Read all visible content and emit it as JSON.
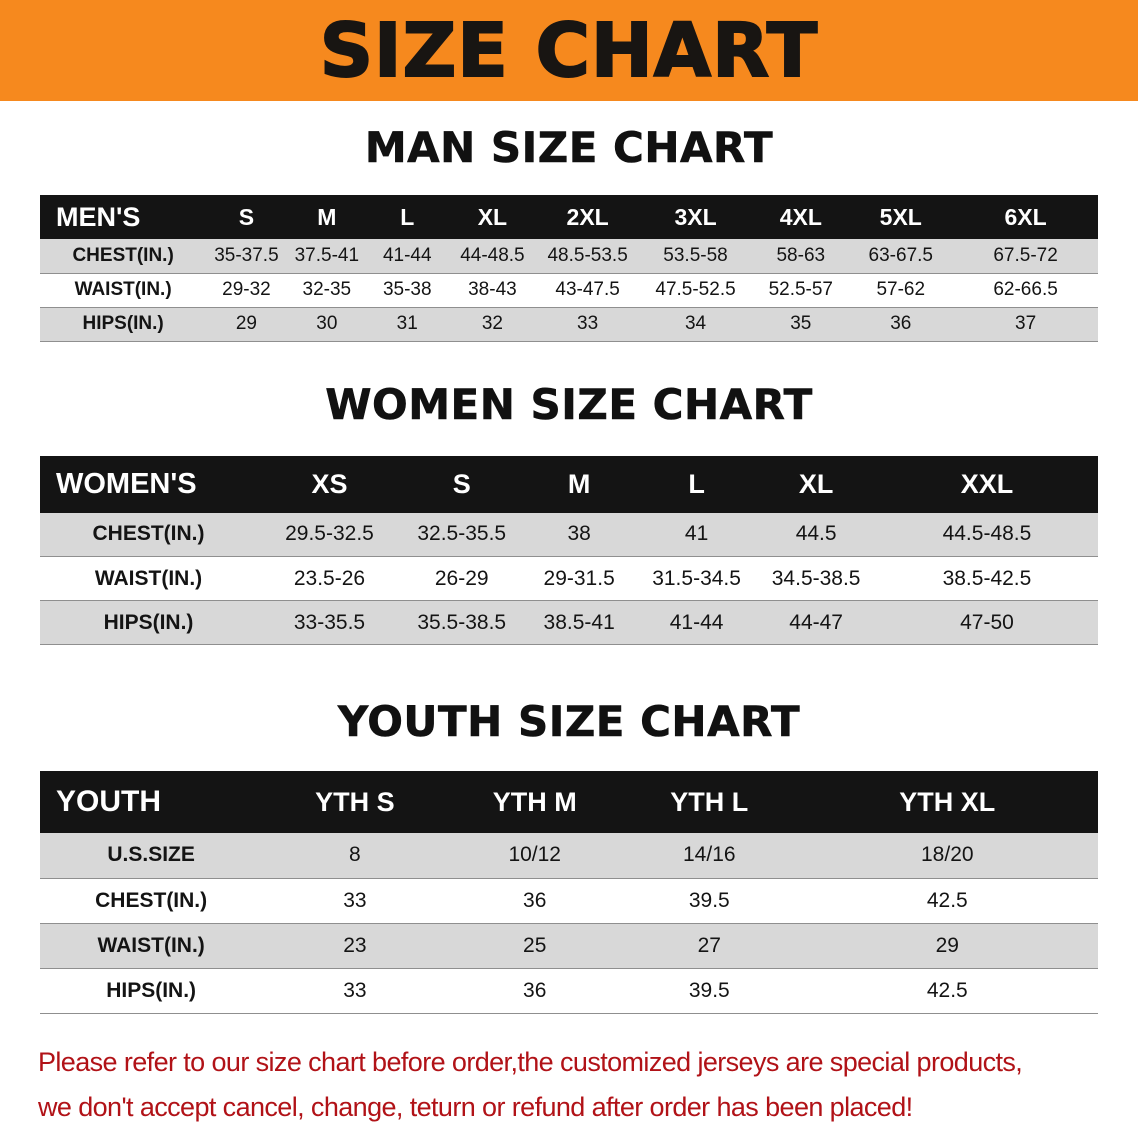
{
  "colors": {
    "page-bg": "#FFFFFF",
    "banner-bg": "#F6891E",
    "banner-text": "#181512",
    "header-bg": "#141414",
    "header-text": "#FFFFFF",
    "row-shade": "#D8D8D8",
    "footer-text": "#B11217",
    "text": "#111111"
  },
  "banner": {
    "title": "SIZE CHART"
  },
  "sections": [
    {
      "heading": "MAN SIZE CHART",
      "table": {
        "header": [
          "MEN'S",
          "S",
          "M",
          "L",
          "XL",
          "2XL",
          "3XL",
          "4XL",
          "5XL",
          "6XL"
        ],
        "rows": [
          [
            "CHEST(IN.)",
            "35-37.5",
            "37.5-41",
            "41-44",
            "44-48.5",
            "48.5-53.5",
            "53.5-58",
            "58-63",
            "63-67.5",
            "67.5-72"
          ],
          [
            "WAIST(IN.)",
            "29-32",
            "32-35",
            "35-38",
            "38-43",
            "43-47.5",
            "47.5-52.5",
            "52.5-57",
            "57-62",
            "62-66.5"
          ],
          [
            "HIPS(IN.)",
            "29",
            "30",
            "31",
            "32",
            "33",
            "34",
            "35",
            "36",
            "37"
          ]
        ]
      }
    },
    {
      "heading": "WOMEN SIZE CHART",
      "table": {
        "header": [
          "WOMEN'S",
          "XS",
          "S",
          "M",
          "L",
          "XL",
          "XXL"
        ],
        "rows": [
          [
            "CHEST(IN.)",
            "29.5-32.5",
            "32.5-35.5",
            "38",
            "41",
            "44.5",
            "44.5-48.5"
          ],
          [
            "WAIST(IN.)",
            "23.5-26",
            "26-29",
            "29-31.5",
            "31.5-34.5",
            "34.5-38.5",
            "38.5-42.5"
          ],
          [
            "HIPS(IN.)",
            "33-35.5",
            "35.5-38.5",
            "38.5-41",
            "41-44",
            "44-47",
            "47-50"
          ]
        ]
      }
    },
    {
      "heading": "YOUTH SIZE CHART",
      "table": {
        "header": [
          "YOUTH",
          "YTH S",
          "YTH M",
          "YTH L",
          "YTH XL"
        ],
        "rows": [
          [
            "U.S.SIZE",
            "8",
            "10/12",
            "14/16",
            "18/20"
          ],
          [
            "CHEST(IN.)",
            "33",
            "36",
            "39.5",
            "42.5"
          ],
          [
            "WAIST(IN.)",
            "23",
            "25",
            "27",
            "29"
          ],
          [
            "HIPS(IN.)",
            "33",
            "36",
            "39.5",
            "42.5"
          ]
        ]
      }
    }
  ],
  "footer": {
    "line1": "Please refer to our size chart before order,the customized jerseys are special products,",
    "line2": "we don't accept cancel, change, teturn or refund after order has been placed!"
  }
}
